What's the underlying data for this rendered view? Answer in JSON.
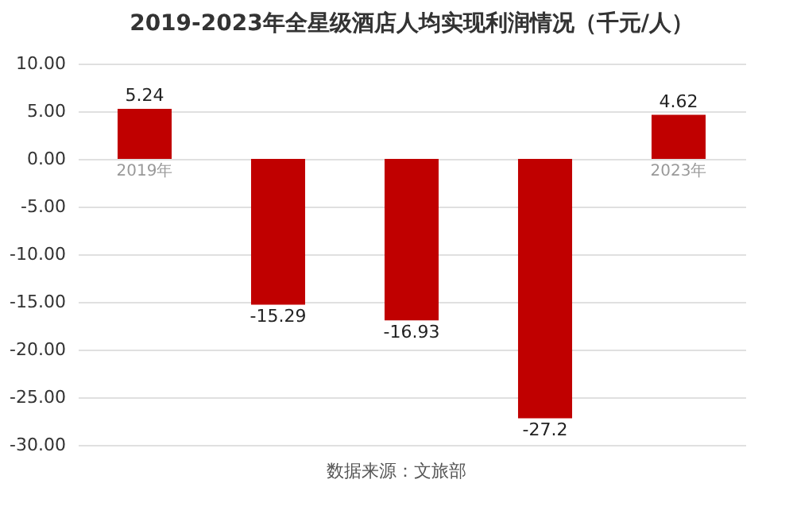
{
  "chart_data": {
    "type": "bar",
    "title": "2019-2023年全星级酒店人均实现利润情况（千元/人）",
    "categories": [
      "2019年",
      null,
      null,
      null,
      "2023年"
    ],
    "values": [
      5.24,
      -15.29,
      -16.93,
      -27.2,
      4.62
    ],
    "color": "#c00000",
    "data_labels": true,
    "ylim": [
      -30,
      10
    ],
    "yticks": [
      {
        "value": 10,
        "label": "10.00"
      },
      {
        "value": 5,
        "label": "5.00"
      },
      {
        "value": 0,
        "label": "0.00"
      },
      {
        "value": -5,
        "label": "-5.00"
      },
      {
        "value": -10,
        "label": "-10.00"
      },
      {
        "value": -15,
        "label": "-15.00"
      },
      {
        "value": -20,
        "label": "-20.00"
      },
      {
        "value": -25,
        "label": "-25.00"
      },
      {
        "value": -30,
        "label": "-30.00"
      }
    ],
    "grid": "y",
    "annotations": [
      "数据来源：文旅部"
    ]
  }
}
